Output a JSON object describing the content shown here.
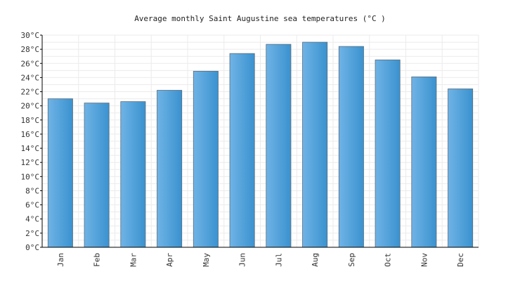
{
  "chart_data": {
    "type": "bar",
    "title": "Average monthly Saint Augustine sea temperatures (°C )",
    "xlabel": "",
    "ylabel": "",
    "categories": [
      "Jan",
      "Feb",
      "Mar",
      "Apr",
      "May",
      "Jun",
      "Jul",
      "Aug",
      "Sep",
      "Oct",
      "Nov",
      "Dec"
    ],
    "values": [
      21.0,
      20.4,
      20.6,
      22.2,
      24.9,
      27.4,
      28.7,
      29.0,
      28.4,
      26.5,
      24.1,
      22.4
    ],
    "ylim": [
      0,
      30
    ],
    "yticks": [
      "0°C",
      "2°C",
      "4°C",
      "6°C",
      "8°C",
      "10°C",
      "12°C",
      "14°C",
      "16°C",
      "18°C",
      "20°C",
      "22°C",
      "24°C",
      "26°C",
      "28°C",
      "30°C"
    ],
    "grid": true,
    "bar_color": "#4d9fdc"
  }
}
